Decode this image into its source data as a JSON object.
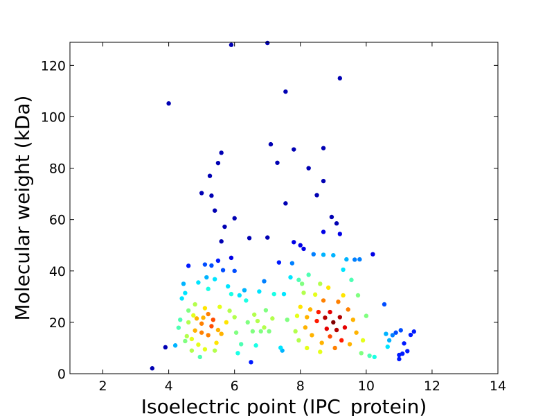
{
  "chart_data": {
    "type": "scatter",
    "xlabel": "Isoelectric point (IPC_protein)",
    "ylabel": "Molecular weight (kDa)",
    "xlim": [
      1,
      14
    ],
    "ylim": [
      0,
      129
    ],
    "xticks": [
      2,
      4,
      6,
      8,
      10,
      12,
      14
    ],
    "yticks": [
      0,
      20,
      40,
      60,
      80,
      100,
      120
    ],
    "grid": false,
    "colormap": "jet (point density)",
    "points": [
      [
        3.5,
        2.1,
        0.05
      ],
      [
        3.9,
        10.3,
        0.05
      ],
      [
        4.0,
        105.2,
        0.05
      ],
      [
        4.2,
        11.0,
        0.3
      ],
      [
        4.3,
        17.9,
        0.45
      ],
      [
        4.35,
        21.0,
        0.45
      ],
      [
        4.4,
        29.3,
        0.35
      ],
      [
        4.45,
        35.0,
        0.3
      ],
      [
        4.5,
        31.4,
        0.35
      ],
      [
        4.5,
        12.7,
        0.5
      ],
      [
        4.55,
        14.6,
        0.55
      ],
      [
        4.6,
        42.0,
        0.15
      ],
      [
        4.6,
        20.0,
        0.55
      ],
      [
        4.6,
        24.6,
        0.5
      ],
      [
        4.7,
        9.0,
        0.55
      ],
      [
        4.7,
        13.5,
        0.6
      ],
      [
        4.75,
        22.7,
        0.6
      ],
      [
        4.8,
        27.0,
        0.55
      ],
      [
        4.8,
        16.8,
        0.7
      ],
      [
        4.85,
        21.5,
        0.7
      ],
      [
        4.9,
        35.5,
        0.35
      ],
      [
        4.9,
        11.3,
        0.6
      ],
      [
        4.95,
        6.5,
        0.45
      ],
      [
        5.0,
        70.3,
        0.05
      ],
      [
        5.0,
        16.0,
        0.75
      ],
      [
        5.0,
        19.5,
        0.75
      ],
      [
        5.05,
        21.8,
        0.7
      ],
      [
        5.1,
        42.5,
        0.2
      ],
      [
        5.1,
        25.5,
        0.65
      ],
      [
        5.1,
        9.5,
        0.6
      ],
      [
        5.15,
        37.5,
        0.3
      ],
      [
        5.2,
        33.0,
        0.4
      ],
      [
        5.2,
        15.0,
        0.75
      ],
      [
        5.2,
        23.2,
        0.75
      ],
      [
        5.25,
        77.0,
        0.05
      ],
      [
        5.3,
        69.3,
        0.05
      ],
      [
        5.3,
        42.1,
        0.2
      ],
      [
        5.3,
        18.5,
        0.8
      ],
      [
        5.35,
        21.0,
        0.8
      ],
      [
        5.4,
        63.5,
        0.05
      ],
      [
        5.4,
        36.8,
        0.35
      ],
      [
        5.4,
        9.0,
        0.55
      ],
      [
        5.45,
        12.0,
        0.65
      ],
      [
        5.5,
        82.0,
        0.05
      ],
      [
        5.5,
        44.0,
        0.15
      ],
      [
        5.5,
        17.0,
        0.7
      ],
      [
        5.55,
        26.0,
        0.6
      ],
      [
        5.6,
        86.0,
        0.05
      ],
      [
        5.6,
        51.5,
        0.05
      ],
      [
        5.6,
        15.5,
        0.7
      ],
      [
        5.65,
        40.3,
        0.2
      ],
      [
        5.7,
        57.2,
        0.05
      ],
      [
        5.75,
        20.0,
        0.65
      ],
      [
        5.8,
        34.0,
        0.35
      ],
      [
        5.85,
        24.5,
        0.55
      ],
      [
        5.9,
        128.0,
        0.05
      ],
      [
        5.9,
        45.1,
        0.1
      ],
      [
        5.9,
        31.0,
        0.4
      ],
      [
        6.0,
        60.5,
        0.05
      ],
      [
        6.0,
        40.0,
        0.2
      ],
      [
        6.0,
        22.0,
        0.55
      ],
      [
        6.05,
        16.0,
        0.5
      ],
      [
        6.1,
        8.0,
        0.4
      ],
      [
        6.15,
        30.5,
        0.35
      ],
      [
        6.2,
        11.5,
        0.45
      ],
      [
        6.3,
        32.5,
        0.3
      ],
      [
        6.35,
        28.5,
        0.4
      ],
      [
        6.4,
        20.0,
        0.5
      ],
      [
        6.45,
        52.8,
        0.05
      ],
      [
        6.5,
        4.5,
        0.15
      ],
      [
        6.55,
        16.5,
        0.5
      ],
      [
        6.6,
        23.0,
        0.55
      ],
      [
        6.65,
        11.0,
        0.4
      ],
      [
        6.7,
        20.5,
        0.55
      ],
      [
        6.75,
        32.0,
        0.35
      ],
      [
        6.8,
        16.5,
        0.5
      ],
      [
        6.9,
        36.0,
        0.25
      ],
      [
        6.9,
        18.0,
        0.55
      ],
      [
        6.95,
        24.7,
        0.5
      ],
      [
        7.0,
        53.0,
        0.05
      ],
      [
        7.0,
        129.5,
        0.05
      ],
      [
        7.05,
        16.5,
        0.5
      ],
      [
        7.1,
        89.3,
        0.05
      ],
      [
        7.15,
        21.5,
        0.55
      ],
      [
        7.2,
        31.0,
        0.4
      ],
      [
        7.3,
        82.1,
        0.05
      ],
      [
        7.35,
        43.3,
        0.15
      ],
      [
        7.4,
        10.1,
        0.35
      ],
      [
        7.45,
        9.0,
        0.3
      ],
      [
        7.5,
        31.0,
        0.35
      ],
      [
        7.55,
        109.8,
        0.05
      ],
      [
        7.55,
        66.3,
        0.05
      ],
      [
        7.6,
        21.0,
        0.5
      ],
      [
        7.7,
        37.5,
        0.35
      ],
      [
        7.75,
        43.0,
        0.25
      ],
      [
        7.8,
        87.3,
        0.05
      ],
      [
        7.8,
        51.2,
        0.1
      ],
      [
        7.85,
        16.5,
        0.55
      ],
      [
        7.9,
        22.5,
        0.6
      ],
      [
        7.95,
        36.5,
        0.45
      ],
      [
        7.95,
        13.0,
        0.55
      ],
      [
        8.0,
        50.0,
        0.1
      ],
      [
        8.0,
        26.0,
        0.65
      ],
      [
        8.05,
        35.0,
        0.5
      ],
      [
        8.1,
        48.6,
        0.1
      ],
      [
        8.1,
        31.5,
        0.55
      ],
      [
        8.15,
        18.0,
        0.7
      ],
      [
        8.2,
        22.0,
        0.7
      ],
      [
        8.2,
        10.0,
        0.6
      ],
      [
        8.25,
        80.0,
        0.05
      ],
      [
        8.25,
        38.5,
        0.45
      ],
      [
        8.3,
        25.0,
        0.7
      ],
      [
        8.35,
        15.0,
        0.7
      ],
      [
        8.4,
        46.5,
        0.25
      ],
      [
        8.45,
        30.8,
        0.6
      ],
      [
        8.5,
        69.5,
        0.05
      ],
      [
        8.5,
        20.5,
        0.85
      ],
      [
        8.55,
        24.0,
        0.85
      ],
      [
        8.6,
        35.0,
        0.55
      ],
      [
        8.6,
        8.5,
        0.6
      ],
      [
        8.65,
        12.0,
        0.7
      ],
      [
        8.7,
        87.8,
        0.05
      ],
      [
        8.7,
        75.0,
        0.05
      ],
      [
        8.7,
        55.2,
        0.1
      ],
      [
        8.7,
        46.3,
        0.3
      ],
      [
        8.7,
        28.5,
        0.75
      ],
      [
        8.75,
        21.8,
        0.95
      ],
      [
        8.8,
        17.5,
        0.9
      ],
      [
        8.85,
        33.5,
        0.65
      ],
      [
        8.9,
        14.5,
        0.8
      ],
      [
        8.9,
        24.0,
        0.9
      ],
      [
        8.95,
        61.0,
        0.05
      ],
      [
        9.0,
        46.1,
        0.3
      ],
      [
        9.0,
        20.0,
        1.0
      ],
      [
        9.05,
        10.0,
        0.75
      ],
      [
        9.1,
        58.5,
        0.05
      ],
      [
        9.1,
        17.0,
        0.95
      ],
      [
        9.15,
        28.0,
        0.75
      ],
      [
        9.2,
        115.0,
        0.05
      ],
      [
        9.2,
        54.4,
        0.1
      ],
      [
        9.2,
        22.0,
        0.95
      ],
      [
        9.25,
        13.0,
        0.85
      ],
      [
        9.3,
        40.5,
        0.35
      ],
      [
        9.3,
        30.5,
        0.65
      ],
      [
        9.35,
        18.0,
        0.9
      ],
      [
        9.4,
        44.5,
        0.3
      ],
      [
        9.45,
        25.0,
        0.75
      ],
      [
        9.5,
        11.5,
        0.7
      ],
      [
        9.55,
        36.5,
        0.45
      ],
      [
        9.6,
        21.0,
        0.7
      ],
      [
        9.65,
        44.4,
        0.25
      ],
      [
        9.7,
        16.0,
        0.7
      ],
      [
        9.75,
        30.5,
        0.5
      ],
      [
        9.8,
        44.5,
        0.25
      ],
      [
        9.85,
        8.0,
        0.5
      ],
      [
        9.9,
        13.0,
        0.6
      ],
      [
        10.0,
        22.5,
        0.5
      ],
      [
        10.1,
        7.0,
        0.45
      ],
      [
        10.2,
        46.5,
        0.1
      ],
      [
        10.25,
        6.5,
        0.4
      ],
      [
        10.55,
        27.0,
        0.2
      ],
      [
        10.6,
        15.5,
        0.3
      ],
      [
        10.65,
        10.5,
        0.35
      ],
      [
        10.7,
        13.0,
        0.3
      ],
      [
        10.8,
        15.0,
        0.25
      ],
      [
        10.9,
        16.0,
        0.2
      ],
      [
        11.0,
        7.3,
        0.15
      ],
      [
        11.0,
        5.7,
        0.15
      ],
      [
        11.05,
        16.9,
        0.2
      ],
      [
        11.1,
        7.8,
        0.15
      ],
      [
        11.15,
        11.8,
        0.15
      ],
      [
        11.25,
        8.8,
        0.15
      ],
      [
        11.35,
        15.1,
        0.15
      ],
      [
        11.45,
        16.4,
        0.15
      ]
    ]
  }
}
